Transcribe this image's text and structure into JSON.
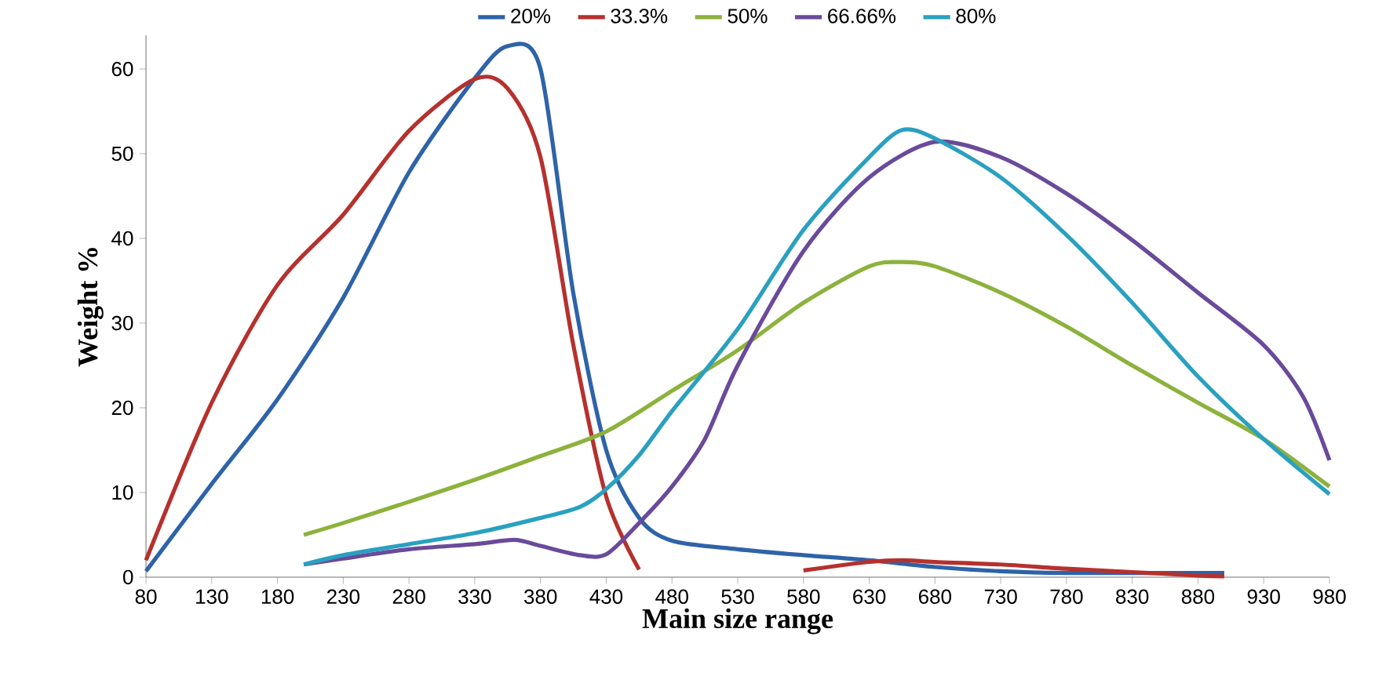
{
  "chart_data": {
    "type": "line",
    "xlabel": "Main size range",
    "ylabel": "Weight %",
    "xlim": [
      80,
      980
    ],
    "xticks": [
      80,
      130,
      180,
      230,
      280,
      330,
      380,
      430,
      480,
      530,
      580,
      630,
      680,
      730,
      780,
      830,
      880,
      930,
      980
    ],
    "ylim": [
      0,
      64
    ],
    "yticks": [
      0,
      10,
      20,
      30,
      40,
      50,
      60
    ],
    "grid": false,
    "legend": "top",
    "marker": "none",
    "line_style": "solid",
    "series": [
      {
        "name": "20%",
        "color": "#2e63a8",
        "x": [
          80,
          130,
          180,
          230,
          280,
          330,
          355,
          380,
          405,
          430,
          455,
          480,
          530,
          580,
          630,
          680,
          730,
          780,
          880,
          900
        ],
        "values": [
          0.7,
          11,
          21,
          33,
          47.8,
          58.9,
          62.7,
          60,
          33.5,
          15,
          7,
          4.3,
          3.3,
          2.6,
          2,
          1.2,
          0.7,
          0.5,
          0.5,
          0.5
        ]
      },
      {
        "name": "33.3%",
        "color": "#b5312e",
        "x": [
          80,
          130,
          180,
          230,
          280,
          330,
          355,
          380,
          405,
          430,
          455,
          505,
          530,
          555,
          580,
          630,
          655,
          680,
          730,
          780,
          830,
          880,
          900
        ],
        "values": [
          2,
          20.6,
          34.5,
          42.8,
          52.7,
          58.8,
          57.7,
          49.6,
          27.4,
          9.5,
          0.9,
          null,
          null,
          null,
          0.8,
          1.8,
          2,
          1.8,
          1.5,
          1,
          0.6,
          0.2,
          0.1
        ]
      },
      {
        "name": "50%",
        "color": "#8cb23c",
        "x": [
          200,
          230,
          280,
          330,
          380,
          430,
          480,
          530,
          580,
          630,
          655,
          680,
          730,
          780,
          830,
          880,
          930,
          980
        ],
        "values": [
          5,
          6.4,
          8.9,
          11.5,
          14.3,
          17.2,
          22,
          26.8,
          32.4,
          36.7,
          37.2,
          36.7,
          33.6,
          29.6,
          25,
          20.6,
          16.3,
          10.7
        ]
      },
      {
        "name": "66.66%",
        "color": "#6a4a9a",
        "x": [
          200,
          230,
          280,
          330,
          360,
          380,
          410,
          430,
          455,
          480,
          505,
          530,
          580,
          630,
          680,
          730,
          780,
          830,
          880,
          930,
          960,
          980
        ],
        "values": [
          1.5,
          2.2,
          3.3,
          3.9,
          4.4,
          3.7,
          2.6,
          2.7,
          6.4,
          10.7,
          16.3,
          25,
          38.5,
          47.2,
          51.4,
          49.6,
          45.3,
          39.8,
          33.6,
          27.4,
          21.3,
          13.8
        ]
      },
      {
        "name": "80%",
        "color": "#2aa0c0",
        "x": [
          200,
          230,
          280,
          330,
          380,
          410,
          430,
          455,
          480,
          530,
          580,
          630,
          655,
          680,
          730,
          780,
          830,
          880,
          930,
          980
        ],
        "values": [
          1.5,
          2.6,
          3.9,
          5.2,
          7,
          8.3,
          10.4,
          14.4,
          19.6,
          29.3,
          41,
          49.6,
          52.8,
          51.8,
          47.2,
          40.4,
          32.4,
          23.7,
          16.3,
          9.8
        ]
      }
    ]
  }
}
